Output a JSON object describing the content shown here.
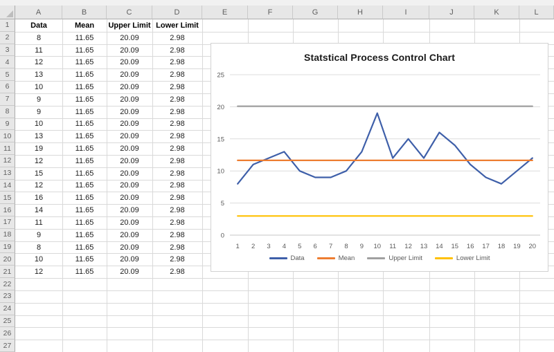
{
  "app": {
    "name": "Excel worksheet with SPC chart"
  },
  "spreadsheet": {
    "column_letters": [
      "A",
      "B",
      "C",
      "D",
      "E",
      "F",
      "G",
      "H",
      "I",
      "J",
      "K",
      "L"
    ],
    "visible_row_count": 27,
    "header_row": [
      "Data",
      "Mean",
      "Upper Limit",
      "Lower Limit"
    ],
    "rows": [
      [
        "8",
        "11.65",
        "20.09",
        "2.98"
      ],
      [
        "11",
        "11.65",
        "20.09",
        "2.98"
      ],
      [
        "12",
        "11.65",
        "20.09",
        "2.98"
      ],
      [
        "13",
        "11.65",
        "20.09",
        "2.98"
      ],
      [
        "10",
        "11.65",
        "20.09",
        "2.98"
      ],
      [
        "9",
        "11.65",
        "20.09",
        "2.98"
      ],
      [
        "9",
        "11.65",
        "20.09",
        "2.98"
      ],
      [
        "10",
        "11.65",
        "20.09",
        "2.98"
      ],
      [
        "13",
        "11.65",
        "20.09",
        "2.98"
      ],
      [
        "19",
        "11.65",
        "20.09",
        "2.98"
      ],
      [
        "12",
        "11.65",
        "20.09",
        "2.98"
      ],
      [
        "15",
        "11.65",
        "20.09",
        "2.98"
      ],
      [
        "12",
        "11.65",
        "20.09",
        "2.98"
      ],
      [
        "16",
        "11.65",
        "20.09",
        "2.98"
      ],
      [
        "14",
        "11.65",
        "20.09",
        "2.98"
      ],
      [
        "11",
        "11.65",
        "20.09",
        "2.98"
      ],
      [
        "9",
        "11.65",
        "20.09",
        "2.98"
      ],
      [
        "8",
        "11.65",
        "20.09",
        "2.98"
      ],
      [
        "10",
        "11.65",
        "20.09",
        "2.98"
      ],
      [
        "12",
        "11.65",
        "20.09",
        "2.98"
      ]
    ]
  },
  "chart_data": {
    "type": "line",
    "title": "Statstical Process Control Chart",
    "x": [
      1,
      2,
      3,
      4,
      5,
      6,
      7,
      8,
      9,
      10,
      11,
      12,
      13,
      14,
      15,
      16,
      17,
      18,
      19,
      20
    ],
    "series": [
      {
        "name": "Data",
        "color": "#3E5FA9",
        "values": [
          8,
          11,
          12,
          13,
          10,
          9,
          9,
          10,
          13,
          19,
          12,
          15,
          12,
          16,
          14,
          11,
          9,
          8,
          10,
          12
        ]
      },
      {
        "name": "Mean",
        "color": "#ED7D31",
        "values": [
          11.65,
          11.65,
          11.65,
          11.65,
          11.65,
          11.65,
          11.65,
          11.65,
          11.65,
          11.65,
          11.65,
          11.65,
          11.65,
          11.65,
          11.65,
          11.65,
          11.65,
          11.65,
          11.65,
          11.65
        ]
      },
      {
        "name": "Upper Limit",
        "color": "#A0A0A0",
        "values": [
          20.09,
          20.09,
          20.09,
          20.09,
          20.09,
          20.09,
          20.09,
          20.09,
          20.09,
          20.09,
          20.09,
          20.09,
          20.09,
          20.09,
          20.09,
          20.09,
          20.09,
          20.09,
          20.09,
          20.09
        ]
      },
      {
        "name": "Lower Limit",
        "color": "#FFC000",
        "values": [
          2.98,
          2.98,
          2.98,
          2.98,
          2.98,
          2.98,
          2.98,
          2.98,
          2.98,
          2.98,
          2.98,
          2.98,
          2.98,
          2.98,
          2.98,
          2.98,
          2.98,
          2.98,
          2.98,
          2.98
        ]
      }
    ],
    "ylim": [
      0,
      25
    ],
    "yticks": [
      0,
      5,
      10,
      15,
      20,
      25
    ],
    "xlabel": "",
    "ylabel": "",
    "grid": true,
    "legend_position": "bottom",
    "axis_text_color": "#595959"
  }
}
